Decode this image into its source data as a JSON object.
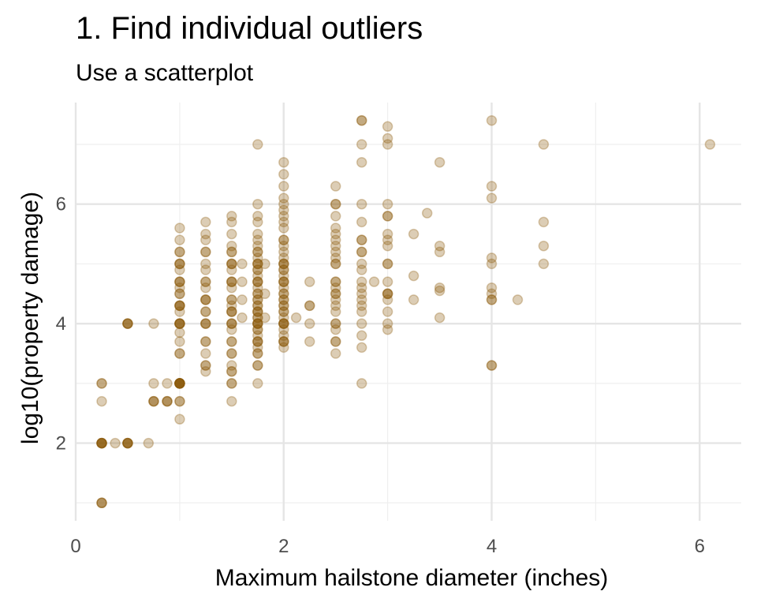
{
  "colors": {
    "point": "#8b5a0b",
    "background": "#ffffff",
    "grid_major": "#e5e5e5",
    "grid_minor": "#efefef"
  },
  "chart_data": {
    "type": "scatter",
    "title": "1. Find individual outliers",
    "subtitle": "Use a scatterplot",
    "xlabel": "Maximum hailstone diameter (inches)",
    "ylabel": "log10(property damage)",
    "xlim": [
      0,
      6.4
    ],
    "ylim": [
      0.7,
      7.7
    ],
    "x_ticks": [
      0,
      2,
      4,
      6
    ],
    "y_ticks": [
      2,
      4,
      6
    ],
    "x_tick_labels": [
      "0",
      "2",
      "4",
      "6"
    ],
    "y_tick_labels": [
      "2",
      "4",
      "6"
    ],
    "grid": true,
    "point_alpha": 0.3,
    "points": [
      [
        0.25,
        1.0
      ],
      [
        0.25,
        1.0
      ],
      [
        0.25,
        1.0
      ],
      [
        0.25,
        2.0
      ],
      [
        0.25,
        2.0
      ],
      [
        0.25,
        2.0
      ],
      [
        0.25,
        2.0
      ],
      [
        0.25,
        2.0
      ],
      [
        0.25,
        2.0
      ],
      [
        0.25,
        2.7
      ],
      [
        0.25,
        3.0
      ],
      [
        0.25,
        3.0
      ],
      [
        0.38,
        2.0
      ],
      [
        0.5,
        2.0
      ],
      [
        0.5,
        2.0
      ],
      [
        0.5,
        2.0
      ],
      [
        0.5,
        2.0
      ],
      [
        0.5,
        2.0
      ],
      [
        0.5,
        4.0
      ],
      [
        0.5,
        4.0
      ],
      [
        0.5,
        4.0
      ],
      [
        0.5,
        4.0
      ],
      [
        0.7,
        2.0
      ],
      [
        0.75,
        2.7
      ],
      [
        0.75,
        2.7
      ],
      [
        0.75,
        2.7
      ],
      [
        0.75,
        3.0
      ],
      [
        0.75,
        4.0
      ],
      [
        0.88,
        2.7
      ],
      [
        0.88,
        2.7
      ],
      [
        0.88,
        2.7
      ],
      [
        0.88,
        3.0
      ],
      [
        1.0,
        2.4
      ],
      [
        1.0,
        2.7
      ],
      [
        1.0,
        2.7
      ],
      [
        1.0,
        3.0
      ],
      [
        1.0,
        3.0
      ],
      [
        1.0,
        3.0
      ],
      [
        1.0,
        3.0
      ],
      [
        1.0,
        3.0
      ],
      [
        1.0,
        3.0
      ],
      [
        1.0,
        3.0
      ],
      [
        1.0,
        3.0
      ],
      [
        1.0,
        3.0
      ],
      [
        1.0,
        3.5
      ],
      [
        1.0,
        3.5
      ],
      [
        1.0,
        3.7
      ],
      [
        1.0,
        3.85
      ],
      [
        1.0,
        4.0
      ],
      [
        1.0,
        4.0
      ],
      [
        1.0,
        4.0
      ],
      [
        1.0,
        4.0
      ],
      [
        1.0,
        4.0
      ],
      [
        1.0,
        4.2
      ],
      [
        1.0,
        4.3
      ],
      [
        1.0,
        4.3
      ],
      [
        1.0,
        4.3
      ],
      [
        1.0,
        4.3
      ],
      [
        1.0,
        4.5
      ],
      [
        1.0,
        4.5
      ],
      [
        1.0,
        4.6
      ],
      [
        1.0,
        4.7
      ],
      [
        1.0,
        4.7
      ],
      [
        1.0,
        4.7
      ],
      [
        1.0,
        4.9
      ],
      [
        1.0,
        5.0
      ],
      [
        1.0,
        5.0
      ],
      [
        1.0,
        5.0
      ],
      [
        1.0,
        5.2
      ],
      [
        1.0,
        5.2
      ],
      [
        1.0,
        5.4
      ],
      [
        1.0,
        5.6
      ],
      [
        1.25,
        3.2
      ],
      [
        1.25,
        3.3
      ],
      [
        1.25,
        3.3
      ],
      [
        1.25,
        3.5
      ],
      [
        1.25,
        3.7
      ],
      [
        1.25,
        3.7
      ],
      [
        1.25,
        4.0
      ],
      [
        1.25,
        4.0
      ],
      [
        1.25,
        4.0
      ],
      [
        1.25,
        4.2
      ],
      [
        1.25,
        4.2
      ],
      [
        1.25,
        4.4
      ],
      [
        1.25,
        4.4
      ],
      [
        1.25,
        4.4
      ],
      [
        1.25,
        4.6
      ],
      [
        1.25,
        4.7
      ],
      [
        1.25,
        4.7
      ],
      [
        1.25,
        4.9
      ],
      [
        1.25,
        5.0
      ],
      [
        1.25,
        5.2
      ],
      [
        1.25,
        5.2
      ],
      [
        1.25,
        5.4
      ],
      [
        1.25,
        5.5
      ],
      [
        1.25,
        5.7
      ],
      [
        1.5,
        2.7
      ],
      [
        1.5,
        3.0
      ],
      [
        1.5,
        3.0
      ],
      [
        1.5,
        3.2
      ],
      [
        1.5,
        3.2
      ],
      [
        1.5,
        3.3
      ],
      [
        1.5,
        3.5
      ],
      [
        1.5,
        3.5
      ],
      [
        1.5,
        3.7
      ],
      [
        1.5,
        3.7
      ],
      [
        1.5,
        3.9
      ],
      [
        1.5,
        4.0
      ],
      [
        1.5,
        4.0
      ],
      [
        1.5,
        4.0
      ],
      [
        1.5,
        4.2
      ],
      [
        1.5,
        4.2
      ],
      [
        1.5,
        4.2
      ],
      [
        1.5,
        4.3
      ],
      [
        1.5,
        4.4
      ],
      [
        1.5,
        4.4
      ],
      [
        1.5,
        4.6
      ],
      [
        1.5,
        4.7
      ],
      [
        1.5,
        4.7
      ],
      [
        1.5,
        4.7
      ],
      [
        1.5,
        4.9
      ],
      [
        1.5,
        5.0
      ],
      [
        1.5,
        5.0
      ],
      [
        1.5,
        5.0
      ],
      [
        1.5,
        5.2
      ],
      [
        1.5,
        5.2
      ],
      [
        1.5,
        5.3
      ],
      [
        1.5,
        5.5
      ],
      [
        1.5,
        5.7
      ],
      [
        1.5,
        5.8
      ],
      [
        1.6,
        4.1
      ],
      [
        1.6,
        4.4
      ],
      [
        1.6,
        4.7
      ],
      [
        1.6,
        5.0
      ],
      [
        1.75,
        3.0
      ],
      [
        1.75,
        3.3
      ],
      [
        1.75,
        3.3
      ],
      [
        1.75,
        3.5
      ],
      [
        1.75,
        3.5
      ],
      [
        1.75,
        3.6
      ],
      [
        1.75,
        3.7
      ],
      [
        1.75,
        3.7
      ],
      [
        1.75,
        3.7
      ],
      [
        1.75,
        3.8
      ],
      [
        1.75,
        3.9
      ],
      [
        1.75,
        3.9
      ],
      [
        1.75,
        4.0
      ],
      [
        1.75,
        4.0
      ],
      [
        1.75,
        4.0
      ],
      [
        1.75,
        4.0
      ],
      [
        1.75,
        4.1
      ],
      [
        1.75,
        4.1
      ],
      [
        1.75,
        4.2
      ],
      [
        1.75,
        4.2
      ],
      [
        1.75,
        4.2
      ],
      [
        1.75,
        4.3
      ],
      [
        1.75,
        4.3
      ],
      [
        1.75,
        4.4
      ],
      [
        1.75,
        4.4
      ],
      [
        1.75,
        4.5
      ],
      [
        1.75,
        4.5
      ],
      [
        1.75,
        4.6
      ],
      [
        1.75,
        4.7
      ],
      [
        1.75,
        4.7
      ],
      [
        1.75,
        4.7
      ],
      [
        1.75,
        4.8
      ],
      [
        1.75,
        4.9
      ],
      [
        1.75,
        4.9
      ],
      [
        1.75,
        5.0
      ],
      [
        1.75,
        5.0
      ],
      [
        1.75,
        5.0
      ],
      [
        1.75,
        5.1
      ],
      [
        1.75,
        5.2
      ],
      [
        1.75,
        5.2
      ],
      [
        1.75,
        5.3
      ],
      [
        1.75,
        5.4
      ],
      [
        1.75,
        5.5
      ],
      [
        1.75,
        5.7
      ],
      [
        1.75,
        5.8
      ],
      [
        1.75,
        6.0
      ],
      [
        1.75,
        7.0
      ],
      [
        1.82,
        4.1
      ],
      [
        1.82,
        4.5
      ],
      [
        1.82,
        5.0
      ],
      [
        2.0,
        3.6
      ],
      [
        2.0,
        3.7
      ],
      [
        2.0,
        3.7
      ],
      [
        2.0,
        3.7
      ],
      [
        2.0,
        3.8
      ],
      [
        2.0,
        3.9
      ],
      [
        2.0,
        4.0
      ],
      [
        2.0,
        4.0
      ],
      [
        2.0,
        4.0
      ],
      [
        2.0,
        4.0
      ],
      [
        2.0,
        4.1
      ],
      [
        2.0,
        4.2
      ],
      [
        2.0,
        4.2
      ],
      [
        2.0,
        4.3
      ],
      [
        2.0,
        4.3
      ],
      [
        2.0,
        4.4
      ],
      [
        2.0,
        4.4
      ],
      [
        2.0,
        4.5
      ],
      [
        2.0,
        4.5
      ],
      [
        2.0,
        4.6
      ],
      [
        2.0,
        4.7
      ],
      [
        2.0,
        4.7
      ],
      [
        2.0,
        4.7
      ],
      [
        2.0,
        4.8
      ],
      [
        2.0,
        4.9
      ],
      [
        2.0,
        4.9
      ],
      [
        2.0,
        5.0
      ],
      [
        2.0,
        5.0
      ],
      [
        2.0,
        5.0
      ],
      [
        2.0,
        5.1
      ],
      [
        2.0,
        5.2
      ],
      [
        2.0,
        5.3
      ],
      [
        2.0,
        5.4
      ],
      [
        2.0,
        5.4
      ],
      [
        2.0,
        5.6
      ],
      [
        2.0,
        5.7
      ],
      [
        2.0,
        5.8
      ],
      [
        2.0,
        5.9
      ],
      [
        2.0,
        6.0
      ],
      [
        2.0,
        6.1
      ],
      [
        2.0,
        6.3
      ],
      [
        2.0,
        6.5
      ],
      [
        2.0,
        6.7
      ],
      [
        2.12,
        4.1
      ],
      [
        2.25,
        3.7
      ],
      [
        2.25,
        4.0
      ],
      [
        2.25,
        4.3
      ],
      [
        2.25,
        4.3
      ],
      [
        2.25,
        4.7
      ],
      [
        2.5,
        3.5
      ],
      [
        2.5,
        3.7
      ],
      [
        2.5,
        3.7
      ],
      [
        2.5,
        3.9
      ],
      [
        2.5,
        4.0
      ],
      [
        2.5,
        4.0
      ],
      [
        2.5,
        4.2
      ],
      [
        2.5,
        4.3
      ],
      [
        2.5,
        4.4
      ],
      [
        2.5,
        4.5
      ],
      [
        2.5,
        4.5
      ],
      [
        2.5,
        4.6
      ],
      [
        2.5,
        4.7
      ],
      [
        2.5,
        4.7
      ],
      [
        2.5,
        5.0
      ],
      [
        2.5,
        5.0
      ],
      [
        2.5,
        5.1
      ],
      [
        2.5,
        5.2
      ],
      [
        2.5,
        5.3
      ],
      [
        2.5,
        5.4
      ],
      [
        2.5,
        5.5
      ],
      [
        2.5,
        5.6
      ],
      [
        2.5,
        5.8
      ],
      [
        2.5,
        6.0
      ],
      [
        2.5,
        6.0
      ],
      [
        2.5,
        6.3
      ],
      [
        2.75,
        3.0
      ],
      [
        2.75,
        3.6
      ],
      [
        2.75,
        3.8
      ],
      [
        2.75,
        4.0
      ],
      [
        2.75,
        4.2
      ],
      [
        2.75,
        4.3
      ],
      [
        2.75,
        4.4
      ],
      [
        2.75,
        4.5
      ],
      [
        2.75,
        4.6
      ],
      [
        2.75,
        4.7
      ],
      [
        2.75,
        4.9
      ],
      [
        2.75,
        5.0
      ],
      [
        2.75,
        5.2
      ],
      [
        2.75,
        5.2
      ],
      [
        2.75,
        5.4
      ],
      [
        2.75,
        5.4
      ],
      [
        2.75,
        5.7
      ],
      [
        2.75,
        6.0
      ],
      [
        2.75,
        6.7
      ],
      [
        2.75,
        7.0
      ],
      [
        2.75,
        7.4
      ],
      [
        2.75,
        7.4
      ],
      [
        2.87,
        4.7
      ],
      [
        3.0,
        3.9
      ],
      [
        3.0,
        4.0
      ],
      [
        3.0,
        4.2
      ],
      [
        3.0,
        4.4
      ],
      [
        3.0,
        4.5
      ],
      [
        3.0,
        4.5
      ],
      [
        3.0,
        4.5
      ],
      [
        3.0,
        4.7
      ],
      [
        3.0,
        5.0
      ],
      [
        3.0,
        5.0
      ],
      [
        3.0,
        5.3
      ],
      [
        3.0,
        5.4
      ],
      [
        3.0,
        5.5
      ],
      [
        3.0,
        5.8
      ],
      [
        3.0,
        5.8
      ],
      [
        3.0,
        6.0
      ],
      [
        3.0,
        7.0
      ],
      [
        3.0,
        7.1
      ],
      [
        3.0,
        7.3
      ],
      [
        3.25,
        4.4
      ],
      [
        3.25,
        4.8
      ],
      [
        3.25,
        5.5
      ],
      [
        3.38,
        5.85
      ],
      [
        3.5,
        4.1
      ],
      [
        3.5,
        4.55
      ],
      [
        3.5,
        4.6
      ],
      [
        3.5,
        5.2
      ],
      [
        3.5,
        5.3
      ],
      [
        3.5,
        6.7
      ],
      [
        4.0,
        3.3
      ],
      [
        4.0,
        3.3
      ],
      [
        4.0,
        4.4
      ],
      [
        4.0,
        4.4
      ],
      [
        4.0,
        4.5
      ],
      [
        4.0,
        4.6
      ],
      [
        4.0,
        5.0
      ],
      [
        4.0,
        5.1
      ],
      [
        4.0,
        6.1
      ],
      [
        4.0,
        6.3
      ],
      [
        4.0,
        7.4
      ],
      [
        4.25,
        4.4
      ],
      [
        4.5,
        5.0
      ],
      [
        4.5,
        5.3
      ],
      [
        4.5,
        5.7
      ],
      [
        4.5,
        7.0
      ],
      [
        6.1,
        7.0
      ]
    ]
  }
}
